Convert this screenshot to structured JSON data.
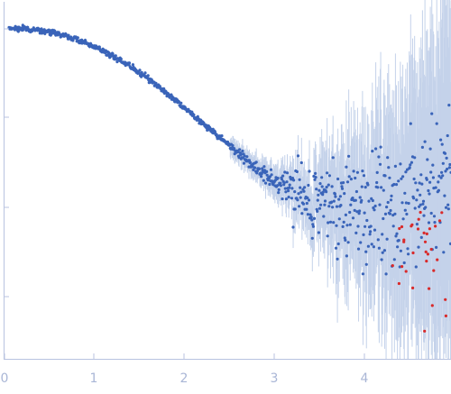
{
  "chart_data": {
    "type": "scatter",
    "title": "",
    "xlabel": "",
    "ylabel": "",
    "xlim": [
      0,
      4.95
    ],
    "y_scale": "log",
    "x_ticks": [
      "0",
      "1",
      "2",
      "3",
      "4"
    ],
    "y_ticks_labeled": false,
    "grid": false,
    "legend": "none",
    "colors": {
      "points": "#3a64b9",
      "outliers": "#d92a2a",
      "error_bars": "#c4d2ea",
      "axis": "#b8c3e0",
      "tick_labels": "#a9b6d6"
    },
    "series": [
      {
        "style": "points-with-error-bars",
        "description_of_shape": "flat near top at low x, falls smoothly (Guinier-like) to ~2.7, then noisy plateau with scatter widening toward high x",
        "x": [
          0.05,
          0.2,
          0.4,
          0.6,
          0.8,
          1.0,
          1.2,
          1.4,
          1.6,
          1.8,
          2.0,
          2.2,
          2.4,
          2.6,
          2.8,
          3.0,
          3.2,
          3.4,
          3.6,
          3.8,
          4.0,
          4.2,
          4.4,
          4.6,
          4.8,
          4.95
        ],
        "y_log_decades_below_max": [
          0.0,
          0.0,
          0.02,
          0.06,
          0.12,
          0.2,
          0.3,
          0.42,
          0.56,
          0.72,
          0.88,
          1.05,
          1.22,
          1.38,
          1.55,
          1.7,
          1.78,
          1.9,
          1.95,
          1.97,
          2.0,
          1.95,
          2.0,
          1.9,
          1.85,
          1.8
        ]
      }
    ],
    "outliers_x_range": [
      4.3,
      4.95
    ]
  }
}
